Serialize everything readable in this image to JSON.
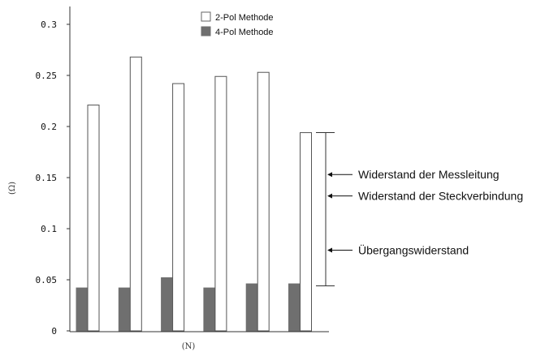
{
  "chart_data": {
    "type": "bar",
    "title": "",
    "xlabel": "(N)",
    "ylabel": "(Ω)",
    "ylim": [
      0,
      0.3
    ],
    "yticks": [
      "0",
      "0.05",
      "0.1",
      "0.15",
      "0.2",
      "0.25",
      "0.3"
    ],
    "ytick_values": [
      0,
      0.05,
      0.1,
      0.15,
      0.2,
      0.25,
      0.3
    ],
    "grid": false,
    "legend_position": "top-center",
    "categories": [
      "",
      "",
      "",
      "",
      "",
      ""
    ],
    "series": [
      {
        "name": "2-Pol Methode",
        "values": [
          0.221,
          0.268,
          0.242,
          0.249,
          0.253,
          0.194
        ],
        "fill": "#ffffff",
        "stroke": "#555555"
      },
      {
        "name": "4-Pol Methode",
        "values": [
          0.042,
          0.042,
          0.052,
          0.042,
          0.046,
          0.046
        ],
        "fill": "#6f6f6f",
        "stroke": "#6f6f6f"
      }
    ],
    "bracket": {
      "from": 0.044,
      "to": 0.194
    },
    "annotations": [
      {
        "text": "Widerstand der Messleitung",
        "y": 0.153
      },
      {
        "text": "Widerstand der Steckverbindung",
        "y": 0.132
      },
      {
        "text": "Übergangswiderstand",
        "y": 0.079
      }
    ]
  }
}
